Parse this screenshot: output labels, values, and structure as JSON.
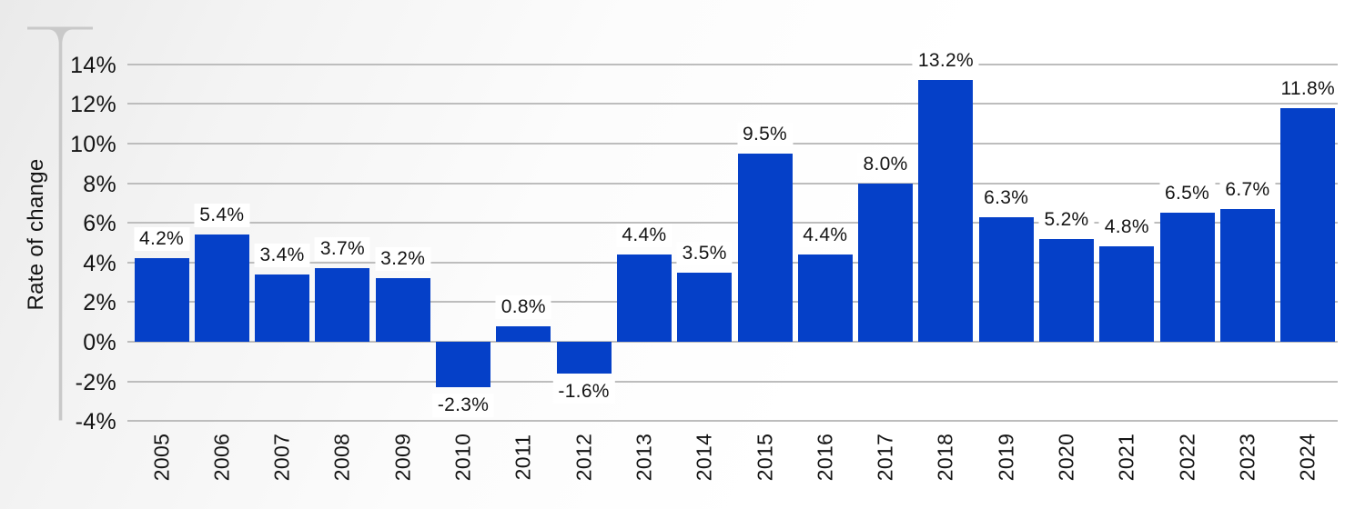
{
  "chart_data": {
    "type": "bar",
    "title": "",
    "xlabel": "",
    "ylabel": "Rate of change",
    "categories": [
      "2005",
      "2006",
      "2007",
      "2008",
      "2009",
      "2010",
      "2011",
      "2012",
      "2013",
      "2014",
      "2015",
      "2016",
      "2017",
      "2018",
      "2019",
      "2020",
      "2021",
      "2022",
      "2023",
      "2024"
    ],
    "values": [
      4.2,
      5.4,
      3.4,
      3.7,
      3.2,
      -2.3,
      0.8,
      -1.6,
      4.4,
      3.5,
      9.5,
      4.4,
      8.0,
      13.2,
      6.3,
      5.2,
      4.8,
      6.5,
      6.7,
      11.8
    ],
    "data_labels": [
      "4.2%",
      "5.4%",
      "3.4%",
      "3.7%",
      "3.2%",
      "-2.3%",
      "0.8%",
      "-1.6%",
      "4.4%",
      "3.5%",
      "9.5%",
      "4.4%",
      "8.0%",
      "13.2%",
      "6.3%",
      "5.2%",
      "4.8%",
      "6.5%",
      "6.7%",
      "11.8%"
    ],
    "y_tick_labels": [
      "14%",
      "12%",
      "10%",
      "8%",
      "6%",
      "4%",
      "2%",
      "0%",
      "-2%",
      "-4%"
    ],
    "y_tick_values": [
      14,
      12,
      10,
      8,
      6,
      4,
      2,
      0,
      -2,
      -4
    ],
    "ylim": [
      -4,
      15
    ],
    "grid": true,
    "legend": "none",
    "colors": {
      "bar": "#0540c8",
      "gridline": "#bdbdbd",
      "axis_line": "#c9c9c9",
      "text": "#141414",
      "label_halo": "#ffffff"
    }
  }
}
